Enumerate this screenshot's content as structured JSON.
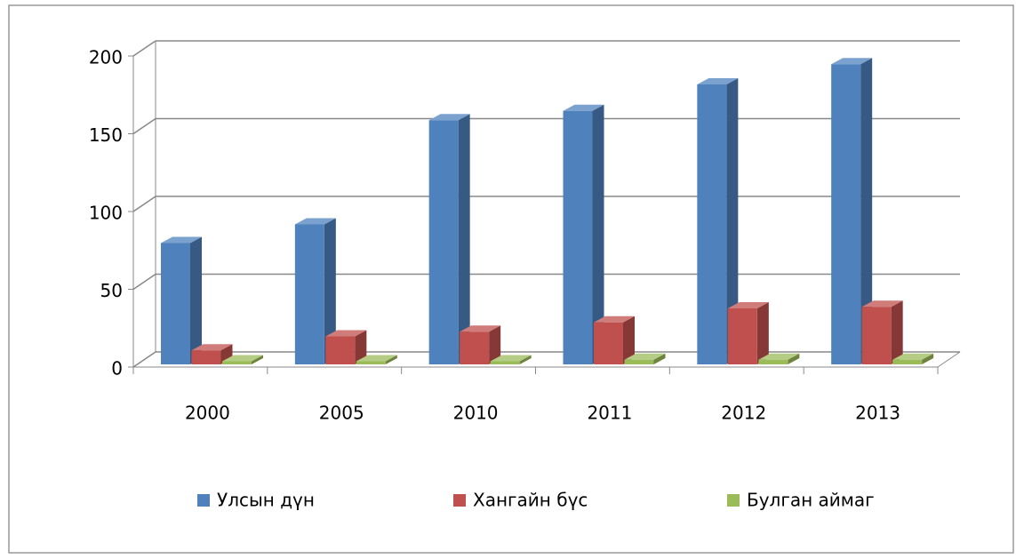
{
  "chart_data": {
    "type": "bar3d",
    "categories": [
      "2000",
      "2005",
      "2010",
      "2011",
      "2012",
      "2013"
    ],
    "series": [
      {
        "name": "Улсын дүн",
        "color": "#4f81bd",
        "values": [
          78,
          90,
          157,
          163,
          180,
          193
        ]
      },
      {
        "name": "Хангайн бүс",
        "color": "#c0504d",
        "values": [
          9,
          18,
          21,
          27,
          36,
          37
        ]
      },
      {
        "name": "Булган аймаг",
        "color": "#9bbb59",
        "values": [
          2,
          2,
          2,
          3,
          3,
          3
        ]
      }
    ],
    "ylim": [
      0,
      200
    ],
    "yticks": [
      0,
      50,
      100,
      150,
      200
    ],
    "grid": true,
    "legend": "bottom"
  }
}
